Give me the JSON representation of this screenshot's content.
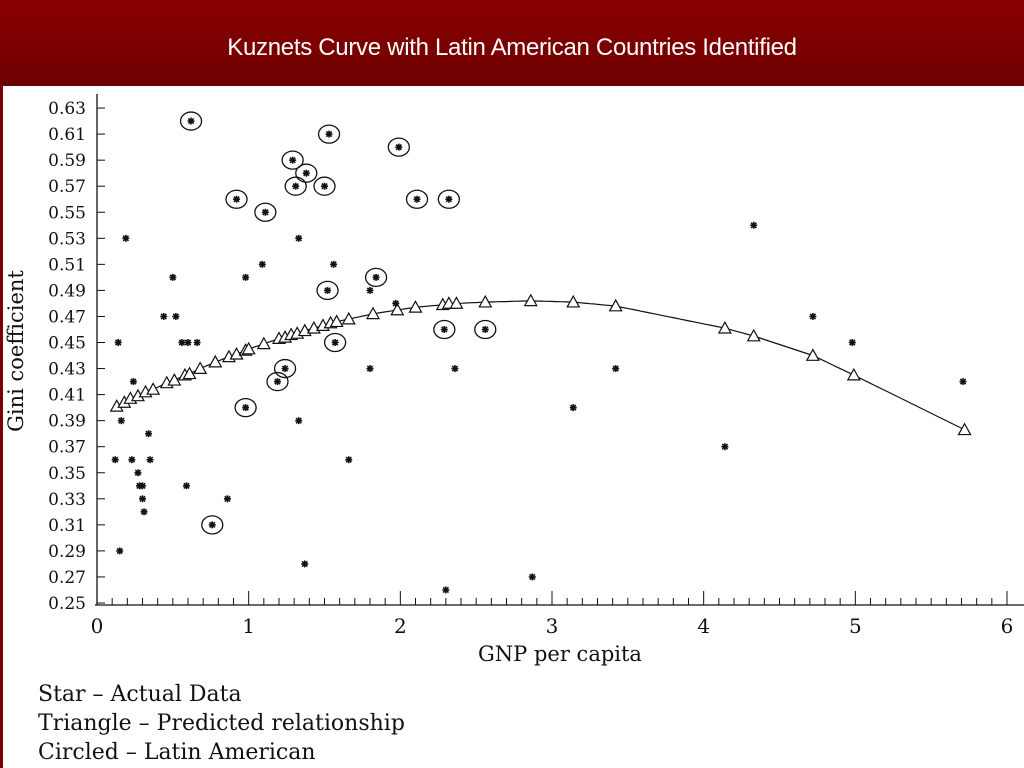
{
  "slide": {
    "title": "Kuznets Curve with Latin American Countries Identified"
  },
  "legend": {
    "items": [
      "Star – Actual Data",
      "Triangle – Predicted relationship",
      "Circled – Latin American"
    ]
  },
  "colors": {
    "header_bg": "#7a0000",
    "marks": "#111111"
  },
  "chart_data": {
    "type": "scatter",
    "xlabel": "GNP per capita",
    "ylabel": "Gini coefficient",
    "xlim": [
      0,
      6
    ],
    "ylim": [
      0.25,
      0.64
    ],
    "xticks": [
      "0",
      "1",
      "2",
      "3",
      "4",
      "5",
      "6"
    ],
    "yticks": [
      "0.25",
      "0.27",
      "0.29",
      "0.31",
      "0.33",
      "0.35",
      "0.37",
      "0.39",
      "0.41",
      "0.43",
      "0.45",
      "0.47",
      "0.49",
      "0.51",
      "0.53",
      "0.55",
      "0.57",
      "0.59",
      "0.61",
      "0.63"
    ],
    "actual": [
      [
        0.12,
        0.36
      ],
      [
        0.14,
        0.45
      ],
      [
        0.16,
        0.39
      ],
      [
        0.19,
        0.53
      ],
      [
        0.15,
        0.29
      ],
      [
        0.23,
        0.36
      ],
      [
        0.24,
        0.42
      ],
      [
        0.27,
        0.35
      ],
      [
        0.28,
        0.34
      ],
      [
        0.3,
        0.34
      ],
      [
        0.3,
        0.33
      ],
      [
        0.31,
        0.32
      ],
      [
        0.34,
        0.38
      ],
      [
        0.35,
        0.36
      ],
      [
        0.44,
        0.47
      ],
      [
        0.5,
        0.5
      ],
      [
        0.52,
        0.47
      ],
      [
        0.56,
        0.45
      ],
      [
        0.6,
        0.45
      ],
      [
        0.59,
        0.34
      ],
      [
        0.66,
        0.45
      ],
      [
        0.86,
        0.33
      ],
      [
        0.98,
        0.5
      ],
      [
        1.09,
        0.51
      ],
      [
        1.33,
        0.53
      ],
      [
        1.33,
        0.39
      ],
      [
        1.37,
        0.28
      ],
      [
        1.56,
        0.51
      ],
      [
        1.66,
        0.36
      ],
      [
        1.8,
        0.43
      ],
      [
        1.8,
        0.49
      ],
      [
        1.97,
        0.48
      ],
      [
        2.3,
        0.26
      ],
      [
        2.36,
        0.43
      ],
      [
        2.87,
        0.27
      ],
      [
        3.14,
        0.4
      ],
      [
        3.42,
        0.43
      ],
      [
        4.14,
        0.37
      ],
      [
        4.33,
        0.54
      ],
      [
        4.72,
        0.47
      ],
      [
        4.98,
        0.45
      ],
      [
        5.71,
        0.42
      ]
    ],
    "latin_american": [
      [
        0.62,
        0.62
      ],
      [
        0.92,
        0.56
      ],
      [
        0.76,
        0.31
      ],
      [
        0.98,
        0.4
      ],
      [
        1.11,
        0.55
      ],
      [
        1.19,
        0.42
      ],
      [
        1.24,
        0.43
      ],
      [
        1.29,
        0.59
      ],
      [
        1.31,
        0.57
      ],
      [
        1.38,
        0.58
      ],
      [
        1.5,
        0.57
      ],
      [
        1.52,
        0.49
      ],
      [
        1.53,
        0.61
      ],
      [
        1.57,
        0.45
      ],
      [
        1.84,
        0.5
      ],
      [
        1.99,
        0.6
      ],
      [
        2.11,
        0.56
      ],
      [
        2.29,
        0.46
      ],
      [
        2.32,
        0.56
      ],
      [
        2.56,
        0.46
      ]
    ],
    "predicted": [
      [
        0.13,
        0.401
      ],
      [
        0.18,
        0.404
      ],
      [
        0.22,
        0.407
      ],
      [
        0.27,
        0.409
      ],
      [
        0.32,
        0.412
      ],
      [
        0.37,
        0.414
      ],
      [
        0.46,
        0.419
      ],
      [
        0.51,
        0.421
      ],
      [
        0.58,
        0.425
      ],
      [
        0.61,
        0.426
      ],
      [
        0.68,
        0.43
      ],
      [
        0.78,
        0.435
      ],
      [
        0.87,
        0.439
      ],
      [
        0.92,
        0.441
      ],
      [
        0.98,
        0.444
      ],
      [
        1.0,
        0.445
      ],
      [
        1.1,
        0.449
      ],
      [
        1.2,
        0.453
      ],
      [
        1.24,
        0.454
      ],
      [
        1.28,
        0.456
      ],
      [
        1.32,
        0.457
      ],
      [
        1.37,
        0.459
      ],
      [
        1.43,
        0.461
      ],
      [
        1.49,
        0.463
      ],
      [
        1.54,
        0.465
      ],
      [
        1.58,
        0.466
      ],
      [
        1.66,
        0.468
      ],
      [
        1.82,
        0.472
      ],
      [
        1.98,
        0.475
      ],
      [
        2.1,
        0.477
      ],
      [
        2.28,
        0.479
      ],
      [
        2.32,
        0.48
      ],
      [
        2.37,
        0.48
      ],
      [
        2.56,
        0.481
      ],
      [
        2.86,
        0.482
      ],
      [
        3.14,
        0.481
      ],
      [
        3.42,
        0.478
      ],
      [
        4.14,
        0.461
      ],
      [
        4.33,
        0.455
      ],
      [
        4.72,
        0.44
      ],
      [
        4.99,
        0.425
      ],
      [
        5.72,
        0.383
      ]
    ]
  }
}
